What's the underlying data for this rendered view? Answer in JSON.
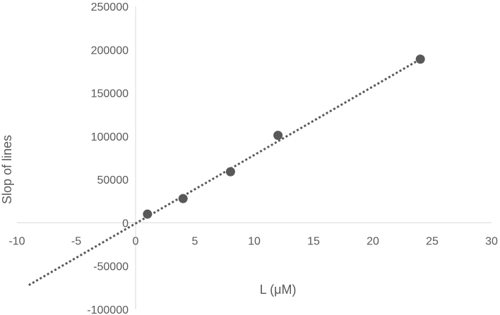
{
  "chart_data": {
    "type": "scatter",
    "title": "",
    "xlabel": "L (μM)",
    "ylabel": "Slop of lines",
    "xlim": [
      -10,
      30
    ],
    "ylim": [
      -100000,
      250000
    ],
    "x_ticks": [
      -10,
      -5,
      0,
      5,
      10,
      15,
      20,
      25,
      30
    ],
    "y_ticks": [
      -100000,
      -50000,
      0,
      50000,
      100000,
      150000,
      200000,
      250000
    ],
    "x_tick_labels": [
      "-10",
      "-5",
      "0",
      "5",
      "10",
      "15",
      "20",
      "25",
      "30"
    ],
    "y_tick_labels": [
      "-100000",
      "-50000",
      "0",
      "50000",
      "100000",
      "150000",
      "200000",
      "250000"
    ],
    "grid": false,
    "legend": "none",
    "series": [
      {
        "points": [
          {
            "x": 1,
            "y": 10000
          },
          {
            "x": 4,
            "y": 28000
          },
          {
            "x": 8,
            "y": 59000
          },
          {
            "x": 12,
            "y": 101000
          },
          {
            "x": 24,
            "y": 189000
          }
        ]
      }
    ],
    "trendline": {
      "style": "dotted",
      "from": {
        "x": -9,
        "y": -72000
      },
      "to": {
        "x": 24,
        "y": 189000
      }
    },
    "colors": {
      "marker": "#595959",
      "trendline": "#595959",
      "axis": "#d9d9d9",
      "text": "#595959"
    }
  }
}
